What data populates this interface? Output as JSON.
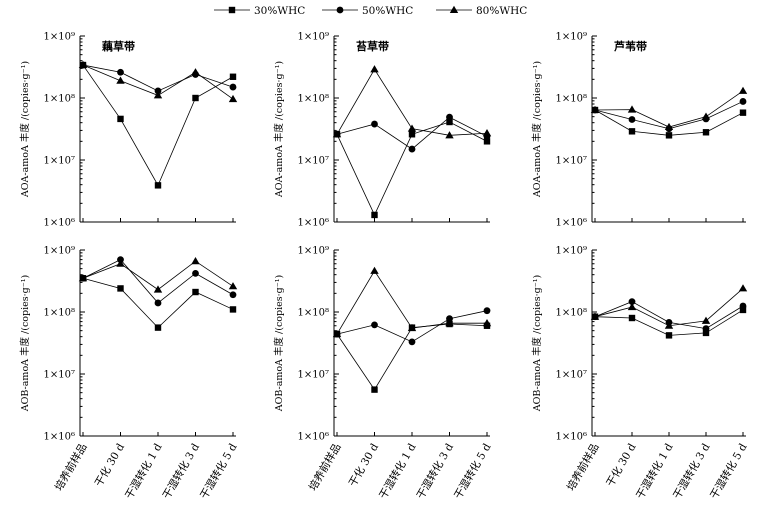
{
  "legend": [
    {
      "name": "30%WHC",
      "marker": "square"
    },
    {
      "name": "50%WHC",
      "marker": "circle"
    },
    {
      "name": "80%WHC",
      "marker": "triangle"
    }
  ],
  "chart_data": [
    {
      "type": "line",
      "panel": "AOA-藕草带",
      "title": "藕草带",
      "ylabel": "AOA-amoA 丰度 /(copies·g⁻¹)",
      "yscale": "log",
      "ylim": [
        1000000.0,
        1000000000.0
      ],
      "categories": [
        "培养前样品",
        "干化 30 d",
        "干湿转化 1 d",
        "干湿转化 3 d",
        "干湿转化 5 d"
      ],
      "series": [
        {
          "name": "30%WHC",
          "values": [
            340000000.0,
            46000000.0,
            3900000.0,
            100000000.0,
            220000000.0
          ]
        },
        {
          "name": "50%WHC",
          "values": [
            340000000.0,
            260000000.0,
            130000000.0,
            240000000.0,
            150000000.0
          ]
        },
        {
          "name": "80%WHC",
          "values": [
            340000000.0,
            190000000.0,
            110000000.0,
            260000000.0,
            96000000.0
          ]
        }
      ]
    },
    {
      "type": "line",
      "panel": "AOA-苔草带",
      "title": "苔草带",
      "ylabel": "AOA-amoA 丰度 /(copies·g⁻¹)",
      "yscale": "log",
      "ylim": [
        1000000.0,
        1000000000.0
      ],
      "categories": [
        "培养前样品",
        "干化 30 d",
        "干湿转化 1 d",
        "干湿转化 3 d",
        "干湿转化 5 d"
      ],
      "series": [
        {
          "name": "30%WHC",
          "values": [
            26000000.0,
            1300000.0,
            26000000.0,
            41000000.0,
            20000000.0
          ]
        },
        {
          "name": "50%WHC",
          "values": [
            26000000.0,
            38000000.0,
            15000000.0,
            49000000.0,
            24000000.0
          ]
        },
        {
          "name": "80%WHC",
          "values": [
            26000000.0,
            290000000.0,
            32000000.0,
            25000000.0,
            27000000.0
          ]
        }
      ]
    },
    {
      "type": "line",
      "panel": "AOA-芦苇带",
      "title": "芦苇带",
      "ylabel": "AOA-amoA 丰度 /(copies·g⁻¹)",
      "yscale": "log",
      "ylim": [
        1000000.0,
        1000000000.0
      ],
      "categories": [
        "培养前样品",
        "干化 30 d",
        "干湿转化 1 d",
        "干湿转化 3 d",
        "干湿转化 5 d"
      ],
      "series": [
        {
          "name": "30%WHC",
          "values": [
            64000000.0,
            29000000.0,
            25000000.0,
            28000000.0,
            58000000.0
          ]
        },
        {
          "name": "50%WHC",
          "values": [
            64000000.0,
            45000000.0,
            32000000.0,
            46000000.0,
            88000000.0
          ]
        },
        {
          "name": "80%WHC",
          "values": [
            64000000.0,
            65000000.0,
            34000000.0,
            50000000.0,
            130000000.0
          ]
        }
      ]
    },
    {
      "type": "line",
      "panel": "AOB-藕草带",
      "title": "",
      "ylabel": "AOB-amoA 丰度 /(copies·g⁻¹)",
      "yscale": "log",
      "ylim": [
        1000000.0,
        1000000000.0
      ],
      "categories": [
        "培养前样品",
        "干化 30 d",
        "干湿转化 1 d",
        "干湿转化 3 d",
        "干湿转化 5 d"
      ],
      "series": [
        {
          "name": "30%WHC",
          "values": [
            350000000.0,
            240000000.0,
            56000000.0,
            210000000.0,
            110000000.0
          ]
        },
        {
          "name": "50%WHC",
          "values": [
            350000000.0,
            700000000.0,
            140000000.0,
            420000000.0,
            190000000.0
          ]
        },
        {
          "name": "80%WHC",
          "values": [
            350000000.0,
            600000000.0,
            230000000.0,
            660000000.0,
            260000000.0
          ]
        }
      ]
    },
    {
      "type": "line",
      "panel": "AOB-苔草带",
      "title": "",
      "ylabel": "AOB-amoA 丰度 /(copies·g⁻¹)",
      "yscale": "log",
      "ylim": [
        1000000.0,
        1000000000.0
      ],
      "categories": [
        "培养前样品",
        "干化 30 d",
        "干湿转化 1 d",
        "干湿转化 3 d",
        "干湿转化 5 d"
      ],
      "series": [
        {
          "name": "30%WHC",
          "values": [
            44000000.0,
            5600000.0,
            56000000.0,
            64000000.0,
            60000000.0
          ]
        },
        {
          "name": "50%WHC",
          "values": [
            44000000.0,
            62000000.0,
            33000000.0,
            78000000.0,
            105000000.0
          ]
        },
        {
          "name": "80%WHC",
          "values": [
            44000000.0,
            460000000.0,
            55000000.0,
            66000000.0,
            66000000.0
          ]
        }
      ]
    },
    {
      "type": "line",
      "panel": "AOB-芦苇带",
      "title": "",
      "ylabel": "AOB-amoA 丰度 /(copies·g⁻¹)",
      "yscale": "log",
      "ylim": [
        1000000.0,
        1000000000.0
      ],
      "categories": [
        "培养前样品",
        "干化 30 d",
        "干湿转化 1 d",
        "干湿转化 3 d",
        "干湿转化 5 d"
      ],
      "series": [
        {
          "name": "30%WHC",
          "values": [
            84000000.0,
            80000000.0,
            42000000.0,
            46000000.0,
            108000000.0
          ]
        },
        {
          "name": "50%WHC",
          "values": [
            84000000.0,
            147000000.0,
            68000000.0,
            54000000.0,
            125000000.0
          ]
        },
        {
          "name": "80%WHC",
          "values": [
            84000000.0,
            120000000.0,
            60000000.0,
            72000000.0,
            240000000.0
          ]
        }
      ]
    }
  ]
}
